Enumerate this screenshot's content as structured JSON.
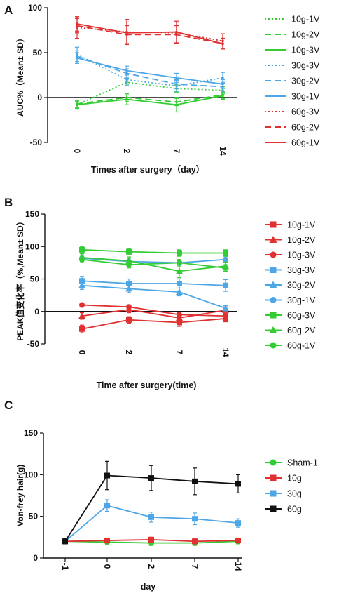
{
  "chart_data": [
    {
      "panel": "A",
      "type": "line",
      "ylabel": "AUC%（Mean± SD）",
      "xlabel": "Times after surgery（day）",
      "categories": [
        "0",
        "2",
        "7",
        "14"
      ],
      "ylim": [
        -50,
        100
      ],
      "yticks": [
        -50,
        0,
        50,
        100
      ],
      "legend_position": "right",
      "series": [
        {
          "name": "10g-1V",
          "color": "#33cc33",
          "dash": "dotted",
          "values": [
            -8,
            17,
            10,
            8
          ],
          "err": [
            4,
            4,
            4,
            4
          ]
        },
        {
          "name": "10g-2V",
          "color": "#33cc33",
          "dash": "dashed",
          "values": [
            -7,
            0,
            -5,
            3
          ],
          "err": [
            4,
            4,
            4,
            4
          ]
        },
        {
          "name": "10g-3V",
          "color": "#33cc33",
          "dash": "solid",
          "values": [
            -8,
            -2,
            -8,
            2
          ],
          "err": [
            5,
            6,
            8,
            4
          ]
        },
        {
          "name": "30g-3V",
          "color": "#4da6e6",
          "dash": "dotted",
          "values": [
            48,
            20,
            13,
            22
          ],
          "err": [
            8,
            6,
            6,
            6
          ]
        },
        {
          "name": "30g-2V",
          "color": "#4da6e6",
          "dash": "dashed",
          "values": [
            46,
            27,
            15,
            12
          ],
          "err": [
            6,
            5,
            5,
            5
          ]
        },
        {
          "name": "30g-1V",
          "color": "#4da6e6",
          "dash": "solid",
          "values": [
            44,
            30,
            22,
            15
          ],
          "err": [
            6,
            5,
            5,
            5
          ]
        },
        {
          "name": "60g-3V",
          "color": "#e03030",
          "dash": "dotted",
          "values": [
            78,
            73,
            72,
            63
          ],
          "err": [
            12,
            14,
            12,
            8
          ]
        },
        {
          "name": "60g-2V",
          "color": "#e03030",
          "dash": "dashed",
          "values": [
            80,
            70,
            70,
            60
          ],
          "err": [
            8,
            10,
            10,
            6
          ]
        },
        {
          "name": "60g-1V",
          "color": "#e03030",
          "dash": "solid",
          "values": [
            82,
            72,
            73,
            60
          ],
          "err": [
            8,
            12,
            12,
            6
          ]
        }
      ]
    },
    {
      "panel": "B",
      "type": "line",
      "ylabel": "PEAK值变化率（%,Mean± SD）",
      "xlabel": "Time after surgery(time)",
      "categories": [
        "0",
        "2",
        "7",
        "14"
      ],
      "ylim": [
        -50,
        150
      ],
      "yticks": [
        -50,
        0,
        50,
        100,
        150
      ],
      "legend_position": "right",
      "series": [
        {
          "name": "10g-1V",
          "color": "#e03030",
          "marker": "square",
          "values": [
            -27,
            -13,
            -17,
            -11
          ],
          "err": [
            6,
            5,
            6,
            5
          ]
        },
        {
          "name": "10g-2V",
          "color": "#e03030",
          "marker": "triangle",
          "values": [
            -7,
            3,
            -10,
            2
          ],
          "err": [
            5,
            5,
            5,
            5
          ]
        },
        {
          "name": "10g-3V",
          "color": "#e03030",
          "marker": "circle",
          "values": [
            10,
            7,
            -5,
            -7
          ],
          "err": [
            3,
            3,
            3,
            3
          ]
        },
        {
          "name": "30g-3V",
          "color": "#4da6e6",
          "marker": "square",
          "values": [
            47,
            43,
            43,
            40
          ],
          "err": [
            7,
            7,
            7,
            9
          ]
        },
        {
          "name": "30g-2V",
          "color": "#4da6e6",
          "marker": "triangle",
          "values": [
            40,
            35,
            30,
            5
          ],
          "err": [
            6,
            6,
            6,
            4
          ]
        },
        {
          "name": "30g-1V",
          "color": "#4da6e6",
          "marker": "circle",
          "values": [
            82,
            77,
            75,
            80
          ],
          "err": [
            5,
            5,
            5,
            5
          ]
        },
        {
          "name": "60g-3V",
          "color": "#33cc33",
          "marker": "square",
          "values": [
            95,
            92,
            90,
            90
          ],
          "err": [
            5,
            5,
            5,
            5
          ]
        },
        {
          "name": "60g-2V",
          "color": "#33cc33",
          "marker": "triangle",
          "values": [
            83,
            78,
            62,
            70
          ],
          "err": [
            6,
            6,
            10,
            6
          ]
        },
        {
          "name": "60g-1V",
          "color": "#33cc33",
          "marker": "circle",
          "values": [
            80,
            72,
            75,
            67
          ],
          "err": [
            5,
            5,
            5,
            5
          ]
        }
      ]
    },
    {
      "panel": "C",
      "type": "line",
      "ylabel": "Von-frey hair(g)",
      "xlabel": "day",
      "categories": [
        "-1",
        "0",
        "2",
        "7",
        "14"
      ],
      "ylim": [
        0,
        150
      ],
      "yticks": [
        0,
        50,
        100,
        150
      ],
      "legend_position": "right",
      "series": [
        {
          "name": "Sham-1",
          "color": "#33cc33",
          "marker": "circle",
          "values": [
            20,
            19,
            18,
            18,
            20
          ],
          "err": [
            3,
            3,
            3,
            3,
            3
          ]
        },
        {
          "name": "10g",
          "color": "#e03030",
          "marker": "square",
          "values": [
            20,
            21,
            22,
            20,
            21
          ],
          "err": [
            3,
            3,
            3,
            3,
            3
          ]
        },
        {
          "name": "30g",
          "color": "#4da6e6",
          "marker": "square",
          "values": [
            20,
            63,
            49,
            47,
            42
          ],
          "err": [
            3,
            7,
            6,
            7,
            5
          ]
        },
        {
          "name": "60g",
          "color": "#111111",
          "marker": "square",
          "values": [
            20,
            99,
            96,
            92,
            89
          ],
          "err": [
            3,
            17,
            15,
            16,
            11
          ]
        }
      ]
    }
  ]
}
